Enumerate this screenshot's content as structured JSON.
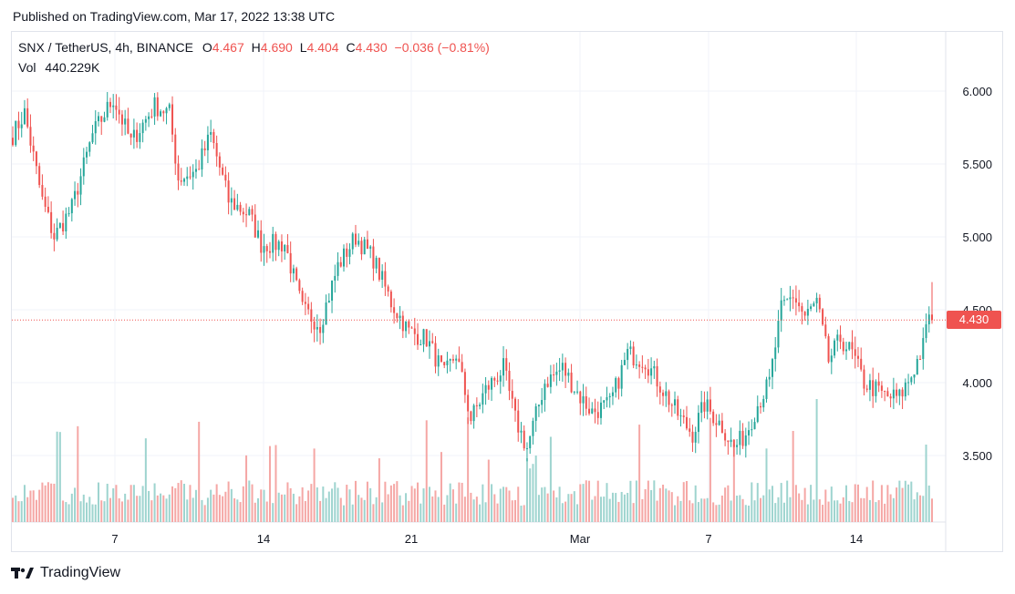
{
  "published": "Published on TradingView.com, Mar 17, 2022 13:38 UTC",
  "legend": {
    "symbol": "SNX / TetherUS, 4h, BINANCE",
    "o_label": "O",
    "o_value": "4.467",
    "h_label": "H",
    "h_value": "4.690",
    "l_label": "L",
    "l_value": "4.404",
    "c_label": "C",
    "c_value": "4.430",
    "change": "−0.036 (−0.81%)",
    "vol_label": "Vol",
    "vol_value": "440.229K"
  },
  "price_tag": "4.430",
  "footer": {
    "brand": "TradingView"
  },
  "colors": {
    "up": "#26a69a",
    "down": "#ef5350",
    "up_vol": "#9ed4cf",
    "down_vol": "#f5a7a5",
    "grid": "#f0f3fa"
  },
  "chart_data": {
    "type": "candlestick",
    "interval": "4h",
    "y_ticks": [
      "6.000",
      "5.500",
      "5.000",
      "4.500",
      "4.000",
      "3.500"
    ],
    "y_range": [
      3.0,
      6.4
    ],
    "x_ticks": [
      "7",
      "14",
      "21",
      "Mar",
      "7",
      "14"
    ],
    "last_price": 4.43,
    "anchors": [
      {
        "i": 0,
        "p": 5.7
      },
      {
        "i": 4,
        "p": 5.85
      },
      {
        "i": 10,
        "p": 5.25
      },
      {
        "i": 14,
        "p": 5.0
      },
      {
        "i": 20,
        "p": 5.2
      },
      {
        "i": 27,
        "p": 5.7
      },
      {
        "i": 34,
        "p": 5.95
      },
      {
        "i": 40,
        "p": 5.65
      },
      {
        "i": 48,
        "p": 5.9
      },
      {
        "i": 53,
        "p": 5.85
      },
      {
        "i": 56,
        "p": 5.4
      },
      {
        "i": 62,
        "p": 5.45
      },
      {
        "i": 67,
        "p": 5.7
      },
      {
        "i": 73,
        "p": 5.25
      },
      {
        "i": 80,
        "p": 5.15
      },
      {
        "i": 84,
        "p": 4.95
      },
      {
        "i": 92,
        "p": 4.95
      },
      {
        "i": 98,
        "p": 4.5
      },
      {
        "i": 104,
        "p": 4.4
      },
      {
        "i": 110,
        "p": 4.8
      },
      {
        "i": 116,
        "p": 5.0
      },
      {
        "i": 122,
        "p": 4.85
      },
      {
        "i": 128,
        "p": 4.55
      },
      {
        "i": 134,
        "p": 4.35
      },
      {
        "i": 140,
        "p": 4.3
      },
      {
        "i": 146,
        "p": 4.05
      },
      {
        "i": 150,
        "p": 4.2
      },
      {
        "i": 155,
        "p": 3.75
      },
      {
        "i": 160,
        "p": 3.95
      },
      {
        "i": 166,
        "p": 4.1
      },
      {
        "i": 170,
        "p": 3.75
      },
      {
        "i": 174,
        "p": 3.55
      },
      {
        "i": 180,
        "p": 4.0
      },
      {
        "i": 186,
        "p": 4.1
      },
      {
        "i": 192,
        "p": 3.9
      },
      {
        "i": 196,
        "p": 3.8
      },
      {
        "i": 202,
        "p": 3.85
      },
      {
        "i": 208,
        "p": 4.2
      },
      {
        "i": 214,
        "p": 4.15
      },
      {
        "i": 220,
        "p": 3.95
      },
      {
        "i": 226,
        "p": 3.75
      },
      {
        "i": 230,
        "p": 3.65
      },
      {
        "i": 234,
        "p": 3.85
      },
      {
        "i": 240,
        "p": 3.7
      },
      {
        "i": 244,
        "p": 3.55
      },
      {
        "i": 248,
        "p": 3.65
      },
      {
        "i": 252,
        "p": 3.85
      },
      {
        "i": 256,
        "p": 4.0
      },
      {
        "i": 260,
        "p": 4.5
      },
      {
        "i": 264,
        "p": 4.6
      },
      {
        "i": 268,
        "p": 4.45
      },
      {
        "i": 272,
        "p": 4.55
      },
      {
        "i": 276,
        "p": 4.15
      },
      {
        "i": 280,
        "p": 4.3
      },
      {
        "i": 284,
        "p": 4.2
      },
      {
        "i": 288,
        "p": 4.0
      },
      {
        "i": 292,
        "p": 3.95
      },
      {
        "i": 296,
        "p": 3.9
      },
      {
        "i": 300,
        "p": 3.9
      },
      {
        "i": 304,
        "p": 4.05
      },
      {
        "i": 308,
        "p": 4.25
      },
      {
        "i": 310,
        "p": 4.46
      }
    ],
    "count": 312
  }
}
